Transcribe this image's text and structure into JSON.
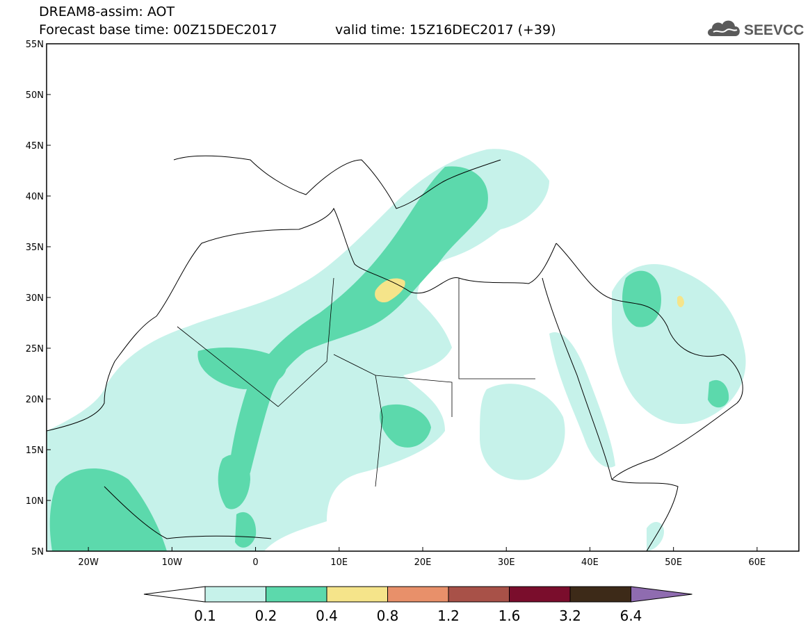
{
  "header": {
    "line1": "DREAM8-assim: AOT",
    "line2": "Forecast base time: 00Z15DEC2017",
    "valid": "valid time: 15Z16DEC2017 (+39)"
  },
  "logo": {
    "text": "SEEVCCC",
    "icon": "cloud-icon"
  },
  "map": {
    "lon_range": [
      -25,
      65
    ],
    "lat_range": [
      5,
      55
    ],
    "lon_ticks": [
      "20W",
      "10W",
      "0",
      "10E",
      "20E",
      "30E",
      "40E",
      "50E",
      "60E"
    ],
    "lat_ticks": [
      "55N",
      "50N",
      "45N",
      "40N",
      "35N",
      "30N",
      "25N",
      "20N",
      "15N",
      "10N",
      "5N"
    ]
  },
  "colorbar": {
    "labels": [
      "0.1",
      "0.2",
      "0.4",
      "0.8",
      "1.2",
      "1.6",
      "3.2",
      "6.4"
    ],
    "colors": [
      "#ffffff",
      "#c6f2ea",
      "#5cd9ac",
      "#f5e48a",
      "#e8906a",
      "#a85148",
      "#7a0d2c",
      "#3d2a18",
      "#8f6cb0"
    ]
  }
}
